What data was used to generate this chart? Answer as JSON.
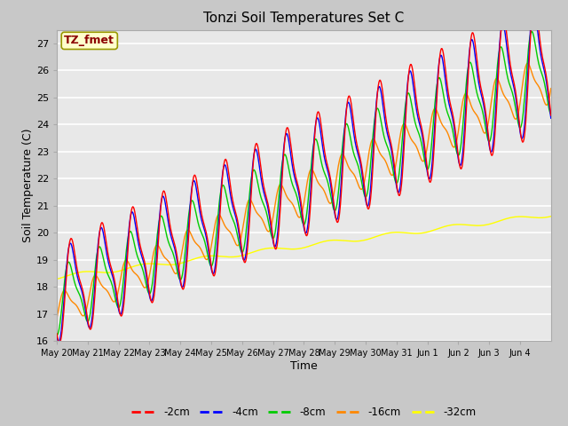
{
  "title": "Tonzi Soil Temperatures Set C",
  "xlabel": "Time",
  "ylabel": "Soil Temperature (C)",
  "ylim": [
    16.0,
    27.5
  ],
  "yticks": [
    16.0,
    17.0,
    18.0,
    19.0,
    20.0,
    21.0,
    22.0,
    23.0,
    24.0,
    25.0,
    26.0,
    27.0
  ],
  "fig_bg_color": "#c8c8c8",
  "plot_bg_color": "#e8e8e8",
  "annotation_label": "TZ_fmet",
  "annotation_text_color": "#8b0000",
  "annotation_box_color": "#ffffcc",
  "series_colors": [
    "#ff0000",
    "#0000ff",
    "#00cc00",
    "#ff8800",
    "#ffff00"
  ],
  "series_labels": [
    "-2cm",
    "-4cm",
    "-8cm",
    "-16cm",
    "-32cm"
  ],
  "x_tick_labels": [
    "May 20",
    "May 21",
    "May 22",
    "May 23",
    "May 24",
    "May 25",
    "May 26",
    "May 27",
    "May 28",
    "May 29",
    "May 30",
    "May 31",
    "Jun 1",
    "Jun 2",
    "Jun 3",
    "Jun 4"
  ]
}
